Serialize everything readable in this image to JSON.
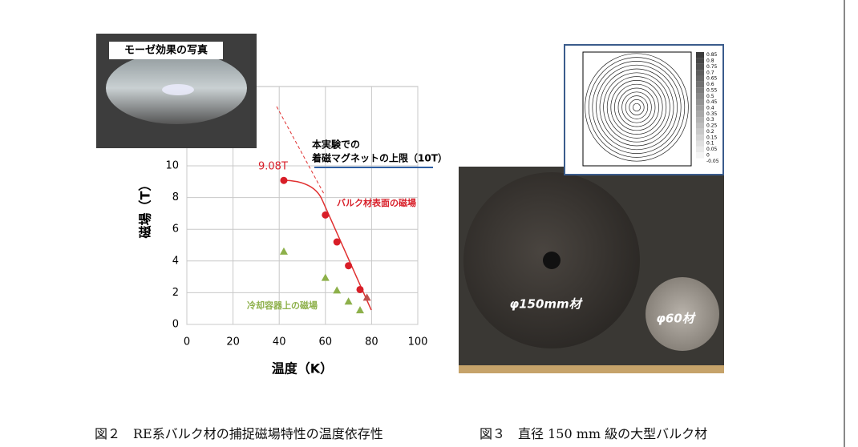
{
  "chart_data": {
    "type": "scatter",
    "xlabel": "温度（K）",
    "ylabel": "磁場（T）",
    "xlim": [
      0,
      100
    ],
    "xticks": [
      0,
      20,
      40,
      60,
      80,
      100
    ],
    "ylim": [
      0,
      15
    ],
    "yticks": [
      0,
      2,
      4,
      6,
      8,
      10
    ],
    "grid": true,
    "series": [
      {
        "name": "バルク材表面の磁場",
        "color": "#d81e28",
        "marker": "circle",
        "x": [
          42,
          60,
          65,
          70,
          75
        ],
        "values": [
          9.08,
          6.9,
          5.2,
          3.7,
          2.2
        ]
      },
      {
        "name": "冷却容器上の磁場",
        "color": "#8db04a",
        "marker": "triangle",
        "x": [
          42,
          60,
          65,
          70,
          75
        ],
        "values": [
          4.6,
          2.95,
          2.15,
          1.45,
          0.9
        ]
      },
      {
        "color": "#c0504d",
        "marker": "triangle",
        "x": [
          78
        ],
        "values": [
          1.7
        ]
      }
    ],
    "annotations": {
      "peak": "9.08T",
      "limit_line1": "本実験での",
      "limit_line2": "着磁マグネットの上限（10T）"
    }
  },
  "photo_label": "モーゼ効果の写真",
  "contour_figure": {
    "colorbar_labels": [
      "0.85",
      "0.8",
      "0.75",
      "0.7",
      "0.65",
      "0.6",
      "0.55",
      "0.5",
      "0.45",
      "0.4",
      "0.35",
      "0.3",
      "0.25",
      "0.2",
      "0.15",
      "0.1",
      "0.05",
      "0",
      "-0.05"
    ]
  },
  "bulk_photo": {
    "large_label": "φ150mm材",
    "small_label": "φ60材"
  },
  "captions": {
    "fig2": "図２　RE系バルク材の捕捉磁場特性の温度依存性",
    "fig3": "図３　直径 150 mm 級の大型バルク材"
  }
}
